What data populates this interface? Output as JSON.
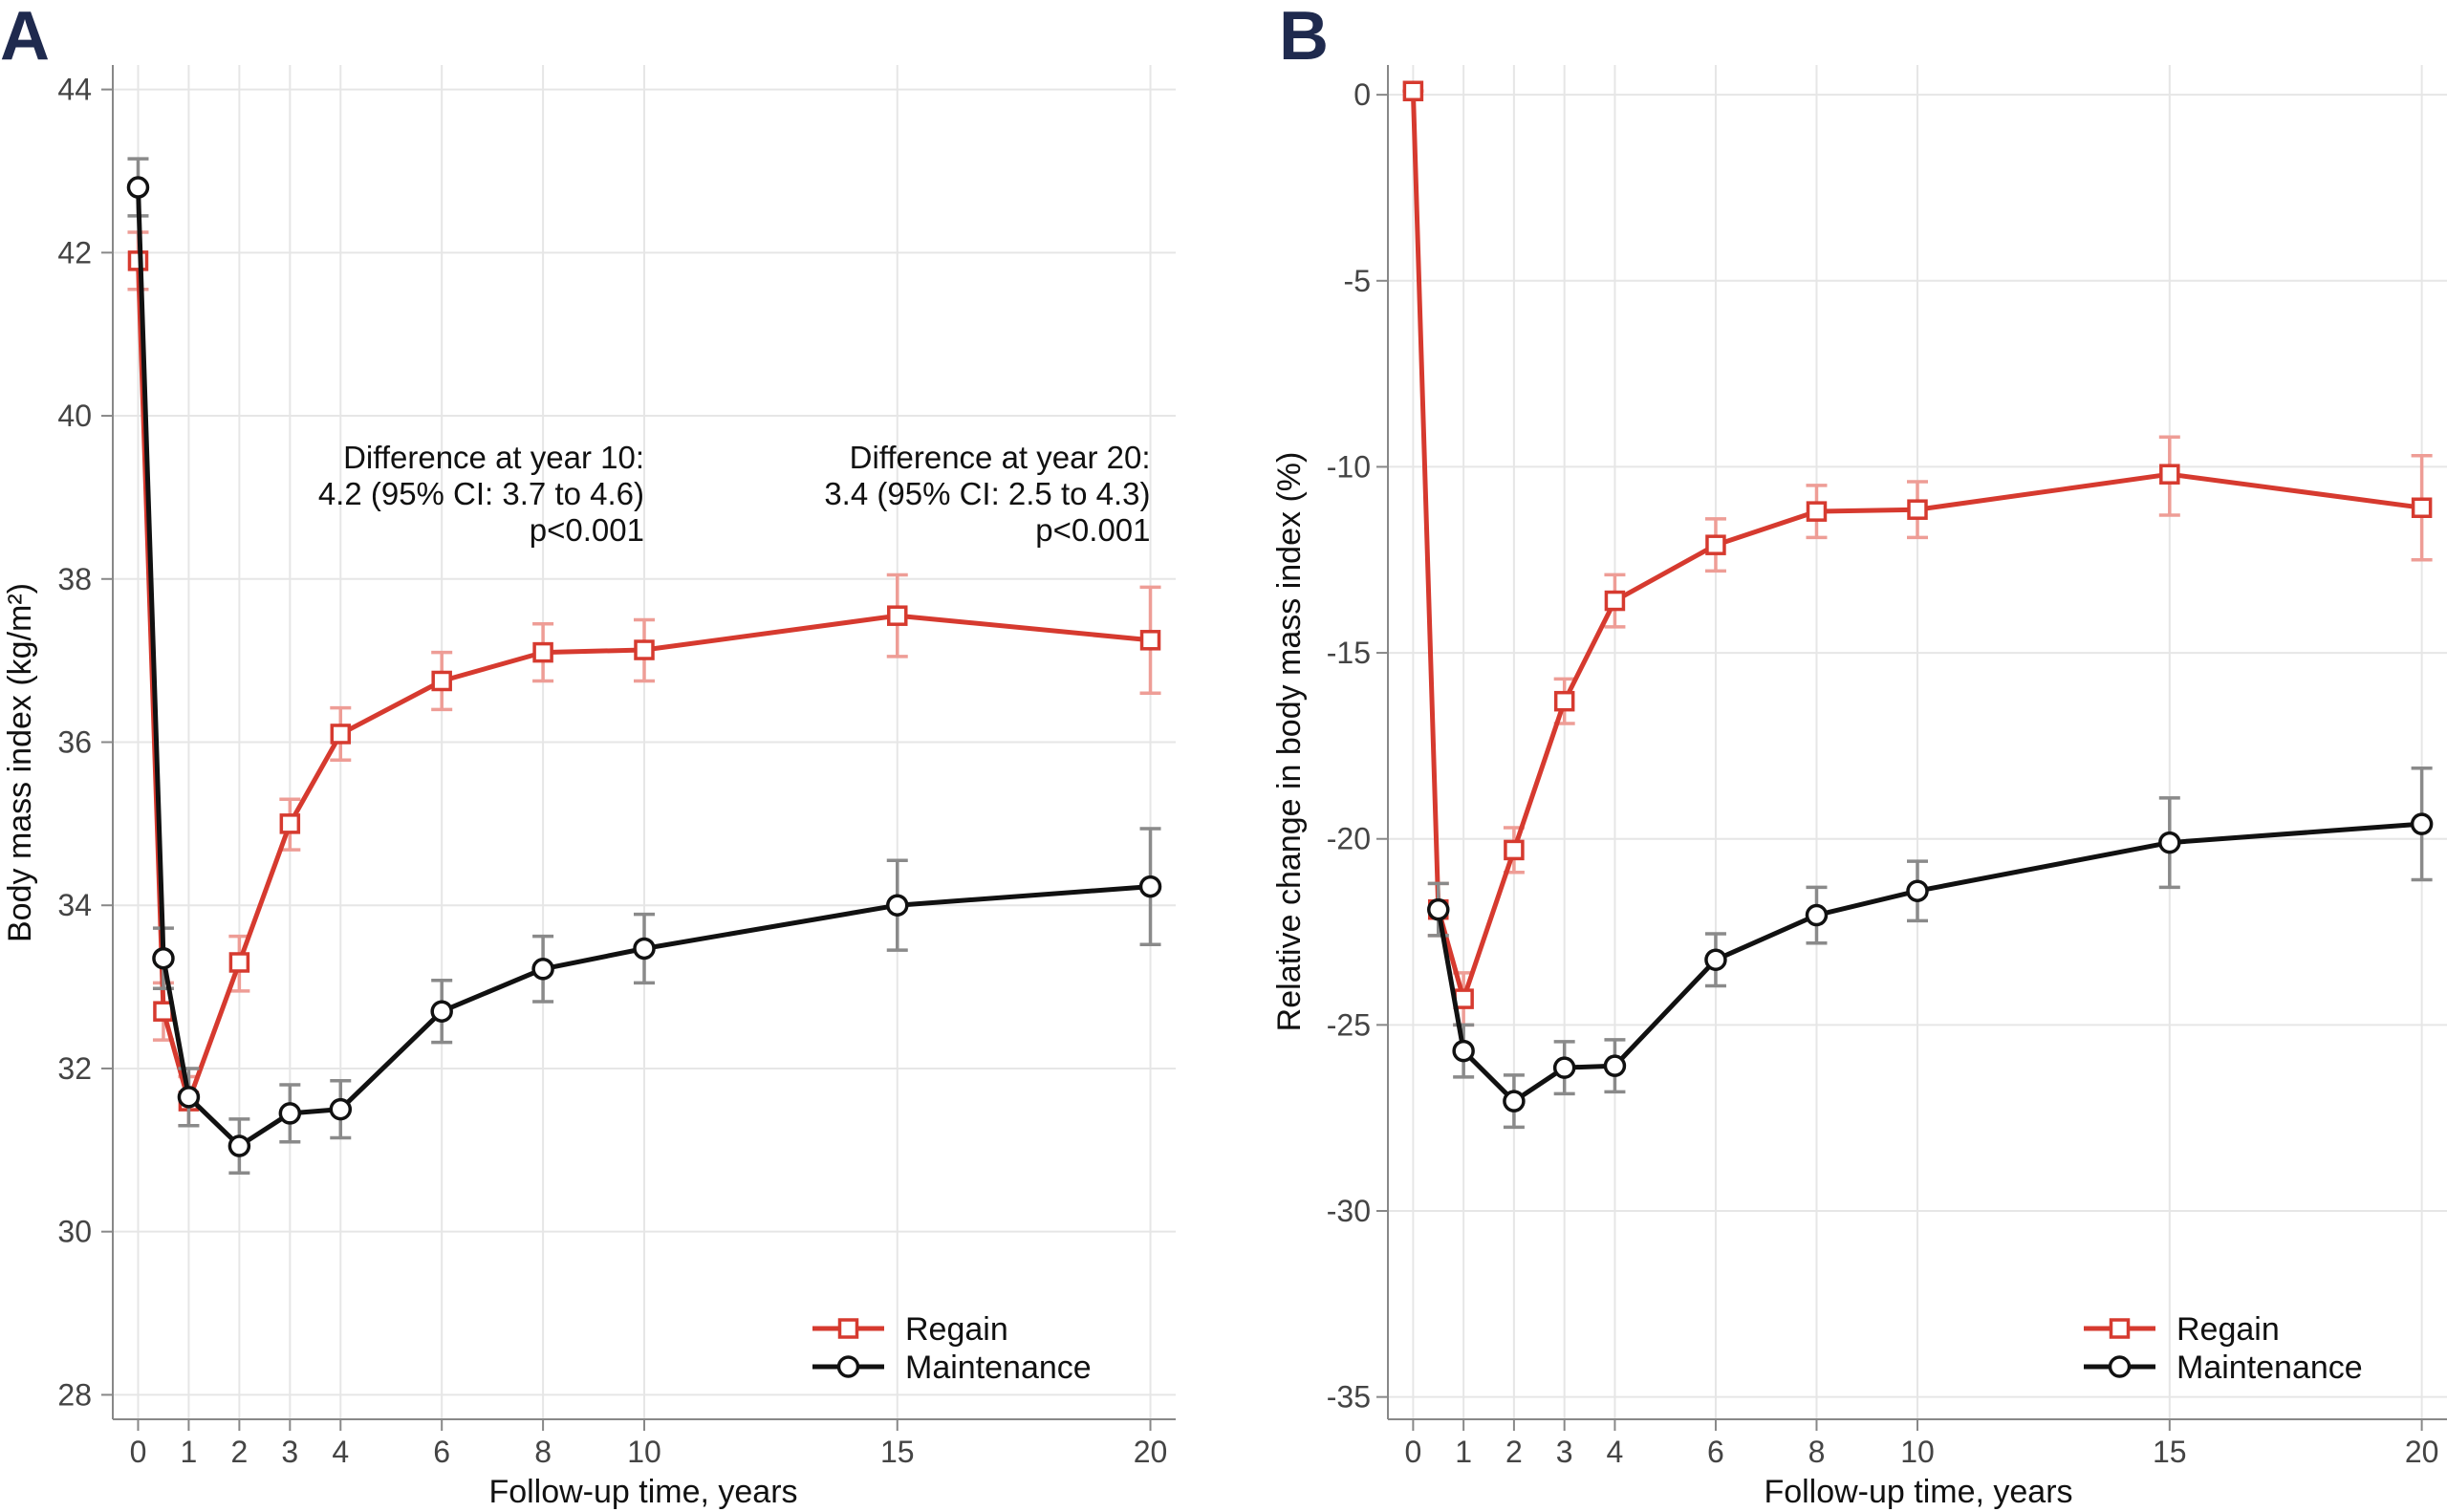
{
  "colors": {
    "regain": "#d63a2f",
    "regain_ci": "#ee9d96",
    "maintenance": "#111111",
    "maintenance_ci": "#8a8a8a",
    "panel_letter": "#1f2a4e"
  },
  "chart_data": [
    {
      "panel": "A",
      "type": "line",
      "title": "",
      "xlabel": "Follow-up time, years",
      "ylabel": "Body mass index (kg/m²)",
      "xticks": [
        0,
        1,
        2,
        3,
        4,
        6,
        8,
        10,
        15,
        20
      ],
      "yticks": [
        28,
        30,
        32,
        34,
        36,
        38,
        40,
        42,
        44
      ],
      "xlim": [
        -0.5,
        20.5
      ],
      "ylim": [
        27.7,
        44.3
      ],
      "grid": true,
      "legend_position": "bottom-right",
      "annotations": [
        {
          "x": 10,
          "lines": [
            "Difference at year 10:",
            "4.2 (95% CI: 3.7 to 4.6)",
            "p<0.001"
          ]
        },
        {
          "x": 20,
          "lines": [
            "Difference at year 20:",
            "3.4 (95% CI: 2.5 to 4.3)",
            "p<0.001"
          ]
        }
      ],
      "series": [
        {
          "name": "Regain",
          "marker": "square",
          "x": [
            0,
            0.5,
            1,
            2,
            3,
            4,
            6,
            8,
            10,
            15,
            20
          ],
          "y": [
            41.9,
            32.7,
            31.6,
            33.3,
            35.0,
            36.1,
            36.75,
            37.1,
            37.13,
            37.55,
            37.25
          ],
          "lower": [
            41.55,
            32.35,
            31.3,
            32.95,
            34.68,
            35.78,
            36.4,
            36.75,
            36.75,
            37.05,
            36.6
          ],
          "upper": [
            42.25,
            33.05,
            31.9,
            33.62,
            35.3,
            36.42,
            37.1,
            37.45,
            37.5,
            38.05,
            37.9
          ]
        },
        {
          "name": "Maintenance",
          "marker": "circle",
          "x": [
            0,
            0.5,
            1,
            2,
            3,
            4,
            6,
            8,
            10,
            15,
            20
          ],
          "y": [
            42.8,
            33.35,
            31.65,
            31.05,
            31.45,
            31.5,
            32.7,
            33.22,
            33.47,
            34.0,
            34.23
          ],
          "lower": [
            42.45,
            32.98,
            31.3,
            30.72,
            31.1,
            31.15,
            32.32,
            32.82,
            33.05,
            33.45,
            33.52
          ],
          "upper": [
            43.15,
            33.72,
            32.0,
            31.38,
            31.8,
            31.85,
            33.08,
            33.62,
            33.89,
            34.55,
            34.94
          ]
        }
      ]
    },
    {
      "panel": "B",
      "type": "line",
      "title": "",
      "xlabel": "Follow-up time, years",
      "ylabel": "Relative change in body mass index (%)",
      "xticks": [
        0,
        1,
        2,
        3,
        4,
        6,
        8,
        10,
        15,
        20
      ],
      "yticks": [
        0,
        -5,
        -10,
        -15,
        -20,
        -25,
        -30,
        -35
      ],
      "xlim": [
        -0.5,
        20.5
      ],
      "ylim": [
        -35.6,
        0.8
      ],
      "grid": true,
      "legend_position": "bottom-right",
      "annotations": [],
      "series": [
        {
          "name": "Regain",
          "marker": "square",
          "x": [
            0,
            0.5,
            1,
            2,
            3,
            4,
            6,
            8,
            10,
            15,
            20
          ],
          "y": [
            0.1,
            -21.9,
            -24.3,
            -20.3,
            -16.3,
            -13.6,
            -12.1,
            -11.2,
            -11.15,
            -10.2,
            -11.1
          ],
          "lower": [
            0.1,
            -22.6,
            -25.0,
            -20.9,
            -16.9,
            -14.3,
            -12.8,
            -11.9,
            -11.9,
            -11.3,
            -12.5
          ],
          "upper": [
            0.1,
            -21.2,
            -23.6,
            -19.7,
            -15.7,
            -12.9,
            -11.4,
            -10.5,
            -10.4,
            -9.2,
            -9.7
          ]
        },
        {
          "name": "Maintenance",
          "marker": "circle",
          "x": [
            0.5,
            1,
            2,
            3,
            4,
            6,
            8,
            10,
            15,
            20
          ],
          "y": [
            -21.9,
            -25.7,
            -27.05,
            -26.15,
            -26.1,
            -23.25,
            -22.05,
            -21.4,
            -20.1,
            -19.6
          ],
          "lower": [
            -22.6,
            -26.4,
            -27.75,
            -26.85,
            -26.8,
            -23.95,
            -22.8,
            -22.2,
            -21.3,
            -21.1
          ],
          "upper": [
            -21.2,
            -25.0,
            -26.35,
            -25.45,
            -25.4,
            -22.55,
            -21.3,
            -20.6,
            -18.9,
            -18.1
          ]
        }
      ]
    }
  ]
}
